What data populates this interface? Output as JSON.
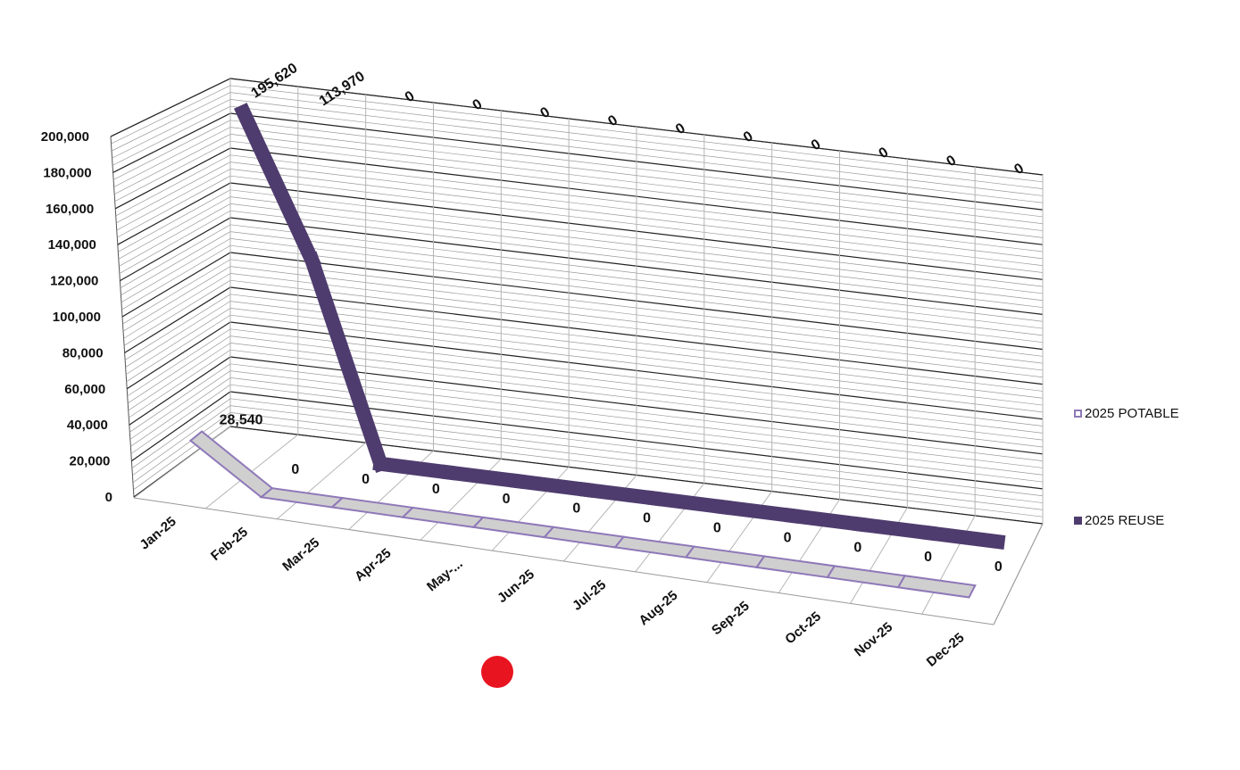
{
  "chart_data": {
    "type": "line",
    "style": "3d-line",
    "categories": [
      "Jan-25",
      "Feb-25",
      "Mar-25",
      "Apr-25",
      "May-...",
      "Jun-25",
      "Jul-25",
      "Aug-25",
      "Sep-25",
      "Oct-25",
      "Nov-25",
      "Dec-25"
    ],
    "y_ticks": [
      "0",
      "20,000",
      "40,000",
      "60,000",
      "80,000",
      "100,000",
      "120,000",
      "140,000",
      "160,000",
      "180,000",
      "200,000"
    ],
    "ylim": [
      0,
      200000
    ],
    "grid": true,
    "legend_position": "right",
    "series": [
      {
        "name": "2025 POTABLE",
        "color": "#d0cfd0",
        "edge_color": "#8e78b8",
        "values": [
          28540,
          0,
          0,
          0,
          0,
          0,
          0,
          0,
          0,
          0,
          0,
          0
        ],
        "labels": [
          "28,540",
          "0",
          "0",
          "0",
          "0",
          "0",
          "0",
          "0",
          "0",
          "0",
          "0",
          "0"
        ]
      },
      {
        "name": "2025 REUSE",
        "color": "#4f3c6e",
        "edge_color": "#5e4d86",
        "values": [
          195620,
          113970,
          0,
          0,
          0,
          0,
          0,
          0,
          0,
          0,
          0,
          0
        ],
        "labels": [
          "195,620",
          "113,970",
          "0",
          "0",
          "0",
          "0",
          "0",
          "0",
          "0",
          "0",
          "0",
          "0"
        ]
      }
    ]
  }
}
